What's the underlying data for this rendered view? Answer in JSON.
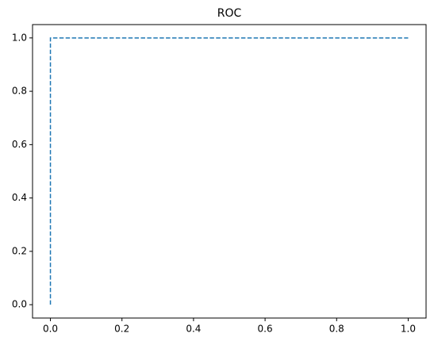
{
  "chart_data": {
    "type": "line",
    "title": "ROC",
    "x": [
      0,
      0,
      1
    ],
    "series": [
      {
        "color": "#1f77b4",
        "values": [
          0,
          1,
          1
        ]
      }
    ],
    "dashed": true,
    "xlim": [
      -0.05,
      1.05
    ],
    "ylim": [
      -0.05,
      1.05
    ],
    "xticks": [
      {
        "value": 0,
        "label": "0.0"
      },
      {
        "value": 0.2,
        "label": "0.2"
      },
      {
        "value": 0.4,
        "label": "0.4"
      },
      {
        "value": 0.6,
        "label": "0.6"
      },
      {
        "value": 0.8,
        "label": "0.8"
      },
      {
        "value": 1,
        "label": "1.0"
      }
    ],
    "yticks": [
      {
        "value": 0,
        "label": "0.0"
      },
      {
        "value": 0.2,
        "label": "0.2"
      },
      {
        "value": 0.4,
        "label": "0.4"
      },
      {
        "value": 0.6,
        "label": "0.6"
      },
      {
        "value": 0.8,
        "label": "0.8"
      },
      {
        "value": 1,
        "label": "1.0"
      }
    ]
  }
}
